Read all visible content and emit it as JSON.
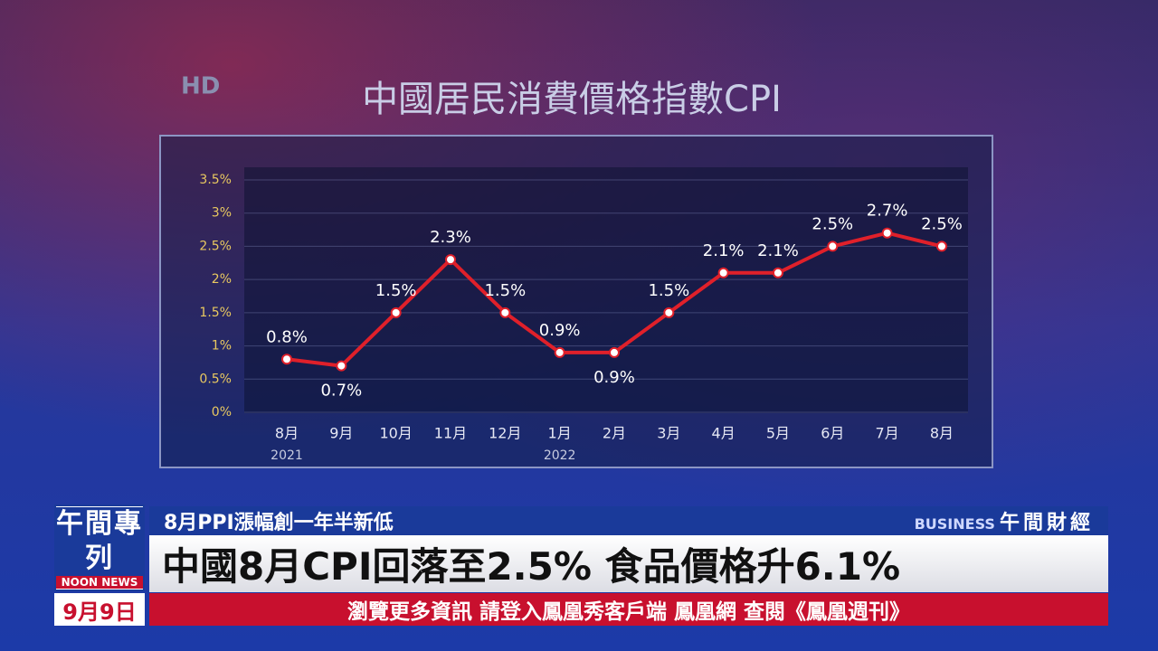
{
  "logo": "HD",
  "chart_data": {
    "type": "line",
    "title": "中國居民消費價格指數CPI",
    "categories": [
      "8月",
      "9月",
      "10月",
      "11月",
      "12月",
      "1月",
      "2月",
      "3月",
      "4月",
      "5月",
      "6月",
      "7月",
      "8月"
    ],
    "category_years": [
      "2021",
      null,
      null,
      null,
      null,
      "2022",
      null,
      null,
      null,
      null,
      null,
      null,
      null
    ],
    "series": [
      {
        "color": "#e0202a",
        "values": [
          0.8,
          0.7,
          1.5,
          2.3,
          1.5,
          0.9,
          0.9,
          1.5,
          2.1,
          2.1,
          2.5,
          2.7,
          2.5
        ],
        "value_labels": [
          "0.8%",
          "0.7%",
          "1.5%",
          "2.3%",
          "1.5%",
          "0.9%",
          "0.9%",
          "1.5%",
          "2.1%",
          "2.1%",
          "2.5%",
          "2.7%",
          "2.5%"
        ]
      }
    ],
    "ylim": [
      0,
      3.5
    ],
    "yticks": [
      {
        "value": 0,
        "label": "0%"
      },
      {
        "value": 0.5,
        "label": "0.5%"
      },
      {
        "value": 1,
        "label": "1%"
      },
      {
        "value": 1.5,
        "label": "1.5%"
      },
      {
        "value": 2,
        "label": "2%"
      },
      {
        "value": 2.5,
        "label": "2.5%"
      },
      {
        "value": 3,
        "label": "3%"
      },
      {
        "value": 3.5,
        "label": "3.5%"
      }
    ],
    "grid": true
  },
  "banner": {
    "program": "午間專列",
    "program_en": "NOON NEWS",
    "date": "9月9日",
    "subhead": "8月PPI漲幅創一年半新低",
    "section_en": "BUSINESS",
    "section": "午間財經",
    "headline": "中國8月CPI回落至2.5% 食品價格升6.1%",
    "ticker": "瀏覽更多資訊 請登入鳳凰秀客戶端 鳳凰網 查閱《鳳凰週刊》"
  }
}
